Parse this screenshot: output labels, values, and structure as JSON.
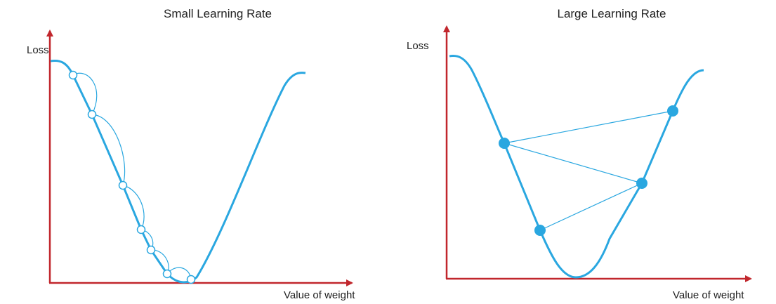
{
  "colors": {
    "axis": "#c1272d",
    "curve": "#2aa7e0",
    "step_marker_fill": "#ffffff",
    "jump_marker_fill": "#2aa7e0",
    "text": "#222222"
  },
  "panels": [
    {
      "id": "small",
      "title": "Small Learning Rate",
      "y_axis_label": "Loss",
      "x_axis_label": "Value of weight",
      "marker_style": "hollow",
      "step_path": "arcs"
    },
    {
      "id": "large",
      "title": "Large Learning Rate",
      "y_axis_label": "Loss",
      "x_axis_label": "Value of weight",
      "marker_style": "filled",
      "step_path": "straight-lines"
    }
  ]
}
